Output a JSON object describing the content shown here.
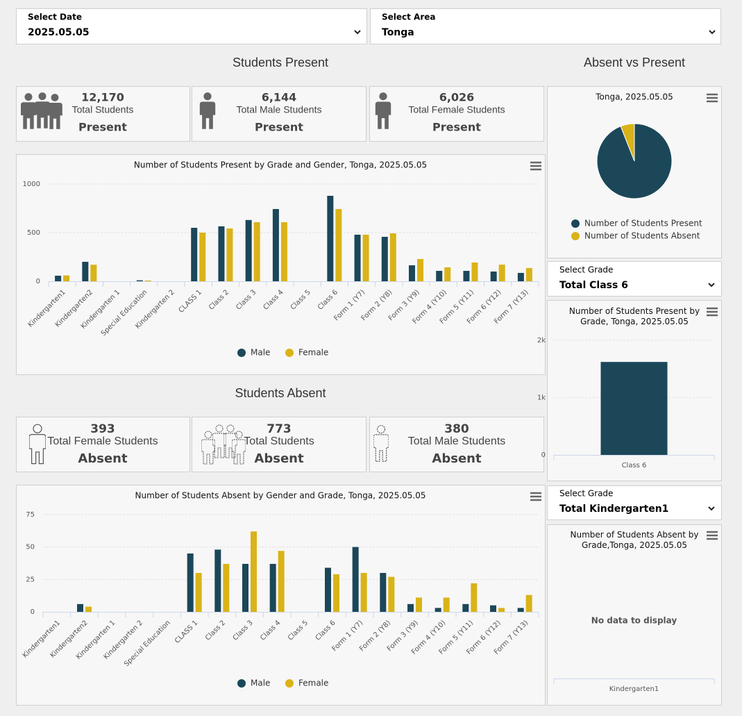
{
  "filters": [
    {
      "label": "Select Date",
      "value": "2025.05.05"
    },
    {
      "label": "Select Area",
      "value": "Tonga"
    }
  ],
  "present": {
    "heading": "Students Present",
    "cards": [
      {
        "number": "12,170",
        "label": "Total Students",
        "status": "Present"
      },
      {
        "number": "6,144",
        "label": "Total Male Students",
        "status": "Present"
      },
      {
        "number": "6,026",
        "label": "Total Female Students",
        "status": "Present"
      }
    ],
    "chart": {
      "type": "bar",
      "title": "Number of Students Present by Grade and Gender, Tonga, 2025.05.05",
      "categories": [
        "Kindergarten1",
        "Kindergarten2",
        "Kindergarten 1",
        "Special Education",
        "Kindergarten 2",
        "CLASS 1",
        "Class 2",
        "Class 3",
        "Class 4",
        "Class 5",
        "Class 6",
        "Form 1 (Y7)",
        "Form 2 (Y8)",
        "Form 3 (Y9)",
        "Form 4 (Y10)",
        "Form 5 (Y11)",
        "Form 6 (Y12)",
        "Form 7 (Y13)"
      ],
      "series": [
        {
          "name": "Male",
          "color": "#1b4759",
          "values": [
            57,
            200,
            0,
            10,
            0,
            550,
            565,
            630,
            743,
            0,
            879,
            479,
            457,
            164,
            107,
            107,
            100,
            86
          ]
        },
        {
          "name": "Female",
          "color": "#dab318",
          "values": [
            60,
            170,
            0,
            8,
            0,
            500,
            543,
            607,
            607,
            0,
            743,
            479,
            493,
            229,
            143,
            193,
            171,
            136
          ]
        }
      ],
      "ylim": [
        0,
        1000
      ],
      "yticks": [
        0,
        500,
        1000
      ],
      "grid": true,
      "legend": "bottom"
    }
  },
  "absent": {
    "heading": "Students Absent",
    "cards": [
      {
        "number": "393",
        "label": "Total Female Students",
        "status": "Absent"
      },
      {
        "number": "773",
        "label": "Total Students",
        "status": "Absent"
      },
      {
        "number": "380",
        "label": "Total Male Students",
        "status": "Absent"
      }
    ],
    "chart": {
      "type": "bar",
      "title": "Number of Students Absent by Gender and Grade, Tonga, 2025.05.05",
      "categories": [
        "Kindergarten1",
        "Kindergarten2",
        "Kindergarten 1",
        "Kindergarten 2",
        "Special Education",
        "CLASS 1",
        "Class 2",
        "Class 3",
        "Class 4",
        "Class 5",
        "Class 6",
        "Form 1 (Y7)",
        "Form 2 (Y8)",
        "Form 3 (Y9)",
        "Form 4 (Y10)",
        "Form 5 (Y11)",
        "Form 6 (Y12)",
        "Form 7 (Y13)"
      ],
      "series": [
        {
          "name": "Male",
          "color": "#1b4759",
          "values": [
            0,
            6,
            0,
            0,
            0,
            45,
            48,
            37,
            37,
            0,
            34,
            50,
            30,
            6,
            3,
            6,
            5,
            3
          ]
        },
        {
          "name": "Female",
          "color": "#dab318",
          "values": [
            0,
            4,
            0,
            0,
            0,
            30,
            37,
            62,
            47,
            0,
            29,
            30,
            27,
            11,
            11,
            22,
            3,
            13
          ]
        }
      ],
      "ylim": [
        0,
        75
      ],
      "yticks": [
        0,
        25,
        50,
        75
      ],
      "grid": true,
      "legend": "bottom"
    }
  },
  "side": {
    "heading": "Absent vs Present",
    "pie": {
      "type": "pie",
      "title": "Tonga, 2025.05.05",
      "categories": [
        "Number of Students Present",
        "Number of Students Absent"
      ],
      "values": [
        12170,
        773
      ],
      "colors": [
        "#1b4759",
        "#dab318"
      ],
      "legend": "bottom"
    },
    "grade_present": {
      "select": {
        "label": "Select Grade",
        "value": "Total Class 6"
      },
      "chart": {
        "type": "bar",
        "title": "Number of Students Present by Grade, Tonga, 2025.05.05",
        "categories": [
          "Class 6"
        ],
        "values": [
          1622
        ],
        "color": "#1b4759",
        "ylim": [
          0,
          2000
        ],
        "yticks": [
          0,
          {
            "value": 1000,
            "label": "1k"
          },
          {
            "value": 2000,
            "label": "2k"
          }
        ],
        "grid": true
      }
    },
    "grade_absent": {
      "select": {
        "label": "Select Grade",
        "value": "Total Kindergarten1"
      },
      "chart": {
        "type": "bar",
        "title": "Number of Students Absent by Grade,Tonga, 2025.05.05",
        "categories": [
          "Kindergarten1"
        ],
        "message": "No data to display"
      }
    }
  }
}
